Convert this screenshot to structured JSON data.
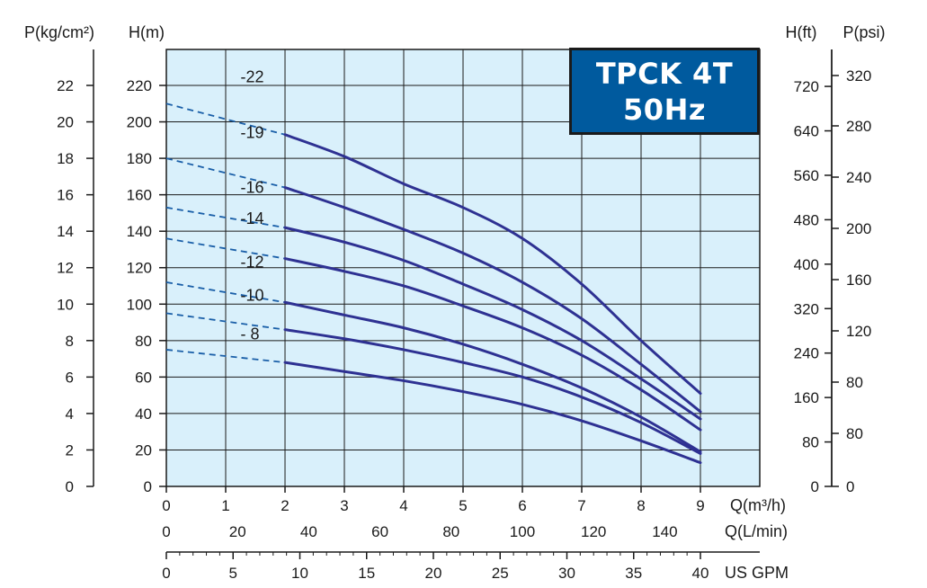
{
  "title": {
    "line1": "TPCK 4T",
    "line2": "50Hz"
  },
  "colors": {
    "plot_bg": "#d9f0fb",
    "curve": "#2e3192",
    "dashed": "#1a5fa8",
    "title_bg": "#005a9e",
    "grid": "#1a1a1a"
  },
  "chart_data": {
    "type": "line",
    "grid": true,
    "xlabel": "Q(m³/h)",
    "ylabel": "H(m)",
    "xlim": [
      0,
      10
    ],
    "ylim": [
      0,
      240
    ],
    "x_ticks": [
      "0",
      "1",
      "2",
      "3",
      "4",
      "5",
      "6",
      "7",
      "8",
      "9"
    ],
    "y_ticks": [
      "0",
      "20",
      "40",
      "60",
      "80",
      "100",
      "120",
      "140",
      "160",
      "180",
      "200",
      "220"
    ],
    "axes": {
      "left_p": {
        "label": "P(kg/cm²)",
        "ticks": [
          "0",
          "2",
          "4",
          "6",
          "8",
          "10",
          "12",
          "14",
          "16",
          "18",
          "20",
          "22"
        ]
      },
      "left_h": {
        "label": "H(m)"
      },
      "right_h": {
        "label": "H(ft)",
        "ticks": [
          "0",
          "80",
          "160",
          "240",
          "320",
          "400",
          "480",
          "560",
          "640",
          "720"
        ]
      },
      "right_p": {
        "label": "P(psi)",
        "ticks": [
          "0",
          "80",
          "80",
          "120",
          "160",
          "200",
          "240",
          "280",
          "320"
        ]
      },
      "bottom_lmin": {
        "label": "Q(L/min)",
        "ticks": [
          "0",
          "20",
          "40",
          "60",
          "80",
          "100",
          "120",
          "140"
        ]
      },
      "bottom_gpm": {
        "label": "US GPM",
        "ticks": [
          "0",
          "5",
          "10",
          "15",
          "20",
          "25",
          "30",
          "35",
          "40"
        ]
      }
    },
    "series": [
      {
        "name": "-22",
        "dashed": {
          "x": [
            0,
            2
          ],
          "y": [
            210,
            193
          ]
        },
        "solid": {
          "x": [
            2,
            3,
            4,
            5,
            6,
            7,
            8,
            9
          ],
          "y": [
            193,
            181,
            166,
            153,
            136,
            111,
            80,
            51
          ]
        }
      },
      {
        "name": "-19",
        "dashed": {
          "x": [
            0,
            2
          ],
          "y": [
            180,
            164
          ]
        },
        "solid": {
          "x": [
            2,
            3,
            4,
            5,
            6,
            7,
            8,
            9
          ],
          "y": [
            164,
            153,
            141,
            128,
            112,
            92,
            67,
            41
          ]
        }
      },
      {
        "name": "-16",
        "dashed": {
          "x": [
            0,
            2
          ],
          "y": [
            153,
            142
          ]
        },
        "solid": {
          "x": [
            2,
            3,
            4,
            5,
            6,
            7,
            8,
            9
          ],
          "y": [
            142,
            134,
            124,
            111,
            97,
            80,
            59,
            37
          ]
        }
      },
      {
        "name": "-14",
        "dashed": {
          "x": [
            0,
            2
          ],
          "y": [
            136,
            125
          ]
        },
        "solid": {
          "x": [
            2,
            3,
            4,
            5,
            6,
            7,
            8,
            9
          ],
          "y": [
            125,
            118,
            110,
            99,
            87,
            72,
            53,
            31
          ]
        }
      },
      {
        "name": "-12",
        "dashed": {
          "x": [
            0,
            2
          ],
          "y": [
            112,
            101
          ]
        },
        "solid": {
          "x": [
            2,
            3,
            4,
            5,
            6,
            7,
            8,
            9
          ],
          "y": [
            101,
            94,
            87,
            78,
            67,
            54,
            38,
            19
          ]
        }
      },
      {
        "name": "-10",
        "dashed": {
          "x": [
            0,
            2
          ],
          "y": [
            95,
            86
          ]
        },
        "solid": {
          "x": [
            2,
            3,
            4,
            5,
            6,
            7,
            8,
            9
          ],
          "y": [
            86,
            81,
            75,
            68,
            60,
            49,
            35,
            18
          ]
        }
      },
      {
        "name": "- 8",
        "dashed": {
          "x": [
            0,
            2
          ],
          "y": [
            75,
            68
          ]
        },
        "solid": {
          "x": [
            2,
            3,
            4,
            5,
            6,
            7,
            8,
            9
          ],
          "y": [
            68,
            63,
            58,
            52,
            45,
            36,
            25,
            13
          ]
        }
      }
    ]
  }
}
